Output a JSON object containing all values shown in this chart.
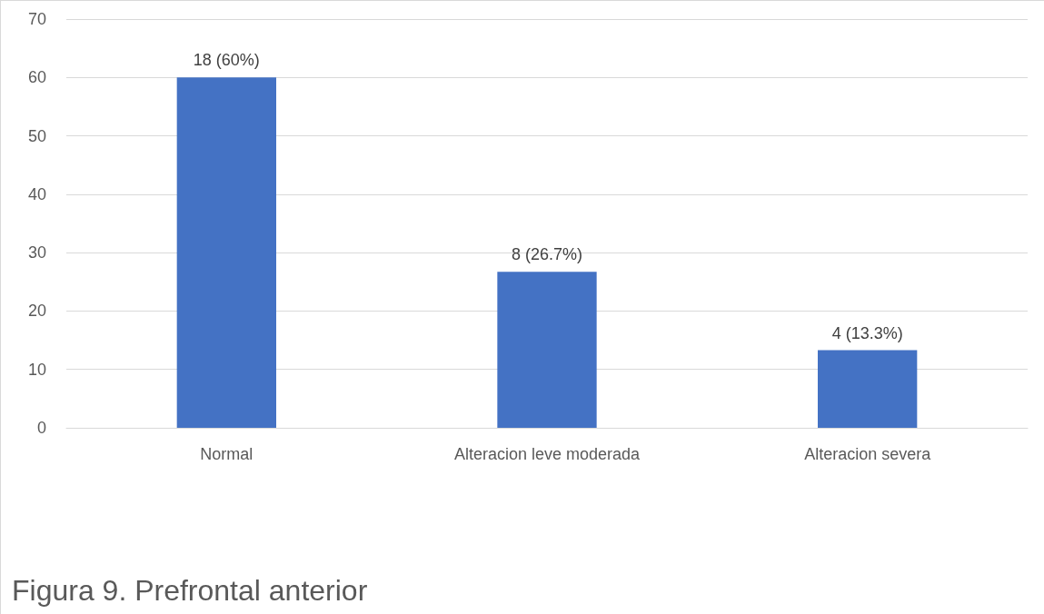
{
  "chart_data": {
    "type": "bar",
    "categories": [
      "Normal",
      "Alteracion leve moderada",
      "Alteracion severa"
    ],
    "values": [
      60,
      26.7,
      13.3
    ],
    "value_labels": [
      "18 (60%)",
      "8 (26.7%)",
      "4 (13.3%)"
    ],
    "color": "#4472c4",
    "ylim": [
      0,
      70
    ],
    "yticks": [
      0,
      10,
      20,
      30,
      40,
      50,
      60,
      70
    ],
    "grid": "y",
    "annotations": [
      "Figura 9. Prefrontal anterior"
    ]
  }
}
